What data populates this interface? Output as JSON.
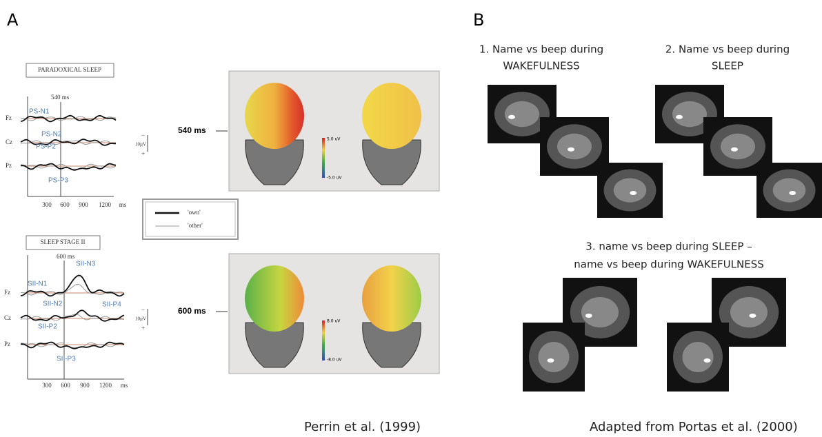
{
  "panel_a": {
    "label": "A",
    "top": {
      "title": "PARADOXICAL SLEEP",
      "marker": "540 ms",
      "channels": [
        "Fz",
        "Cz",
        "Pz"
      ],
      "components": [
        "PS-N1",
        "PS-N2",
        "PS-P2",
        "PS-P3"
      ],
      "x_ticks": [
        "300",
        "600",
        "900",
        "1200",
        "ms"
      ],
      "scale": [
        "−",
        "10µV",
        "+"
      ],
      "map_label": "540 ms",
      "map_scale": [
        "5.0 uV",
        "-5.0 uV"
      ]
    },
    "legend": [
      "'own'",
      "'other'"
    ],
    "bottom": {
      "title": "SLEEP STAGE II",
      "marker": "600 ms",
      "channels": [
        "Fz",
        "Cz",
        "Pz"
      ],
      "components": [
        "SII-N1",
        "SII-N3",
        "SII-N2",
        "SII-P4",
        "SII-P2",
        "SII-P3"
      ],
      "x_ticks": [
        "300",
        "600",
        "900",
        "1200",
        "ms"
      ],
      "scale": [
        "−",
        "10µV",
        "+"
      ],
      "map_label": "600 ms",
      "map_scale": [
        "8.0 uV",
        "-8.0 uV"
      ]
    },
    "caption": "Perrin et al. (1999)"
  },
  "panel_b": {
    "label": "B",
    "heading_1": [
      "1. Name vs beep during",
      "WAKEFULNESS"
    ],
    "heading_2": [
      "2. Name vs beep during",
      "SLEEP"
    ],
    "heading_3": [
      "3. name vs beep during SLEEP  –",
      "name vs beep during WAKEFULNESS"
    ],
    "caption": "Adapted from Portas et al. (2000)"
  }
}
